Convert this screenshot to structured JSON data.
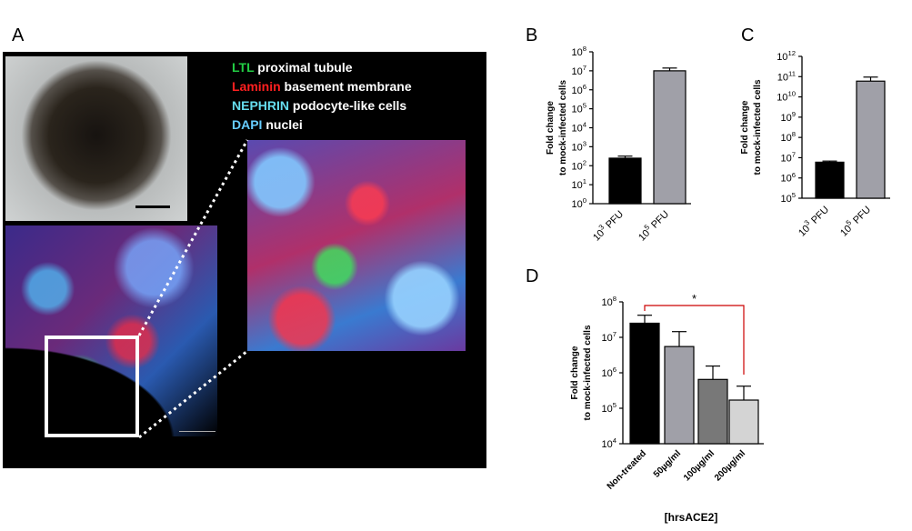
{
  "panel_labels": {
    "a": "A",
    "b": "B",
    "c": "C",
    "d": "D"
  },
  "legend": [
    {
      "marker": "LTL",
      "text": " proximal tubule",
      "color": "#22cc44"
    },
    {
      "marker": "Laminin",
      "text": " basement membrane",
      "color": "#ff2020"
    },
    {
      "marker": "NEPHRIN",
      "text": " podocyte-like cells",
      "color": "#66ddee"
    },
    {
      "marker": "DAPI",
      "text": " nuclei",
      "color": "#66ccff"
    }
  ],
  "chart_data": [
    {
      "id": "B",
      "type": "bar",
      "scale": "log",
      "ylabel": [
        "Fold change",
        "to mock-infected cells"
      ],
      "categories": [
        "10^3 PFU",
        "10^5 PFU"
      ],
      "values": [
        250,
        10000000
      ],
      "errors": [
        70,
        4000000
      ],
      "colors": [
        "#000000",
        "#a0a0a8"
      ],
      "ylim": [
        1,
        100000000
      ],
      "ytick_exponents": [
        0,
        1,
        2,
        3,
        4,
        5,
        6,
        7,
        8
      ]
    },
    {
      "id": "C",
      "type": "bar",
      "scale": "log",
      "ylabel": [
        "Fold change",
        "to mock-infected cells"
      ],
      "categories": [
        "10^3 PFU",
        "10^5 PFU"
      ],
      "values": [
        6000000,
        60000000000
      ],
      "errors": [
        800000,
        35000000000
      ],
      "colors": [
        "#000000",
        "#a0a0a8"
      ],
      "ylim": [
        100000,
        1000000000000
      ],
      "ytick_exponents": [
        5,
        6,
        7,
        8,
        9,
        10,
        11,
        12
      ]
    },
    {
      "id": "D",
      "type": "bar",
      "scale": "log",
      "ylabel": [
        "Fold change",
        "to mock-infected cells"
      ],
      "xlabel": "[hrsACE2]",
      "categories": [
        "Non-treated",
        "50µg/ml",
        "100µg/ml",
        "200µg/ml"
      ],
      "values": [
        25000000,
        5500000,
        650000,
        170000
      ],
      "errors": [
        17000000,
        9000000,
        900000,
        250000
      ],
      "colors": [
        "#000000",
        "#a0a0a8",
        "#787878",
        "#d4d4d4"
      ],
      "ylim": [
        10000,
        100000000
      ],
      "ytick_exponents": [
        4,
        5,
        6,
        7,
        8
      ],
      "significance": {
        "from": "Non-treated",
        "to": "200µg/ml",
        "label": "*",
        "color": "#cc0000"
      }
    }
  ]
}
